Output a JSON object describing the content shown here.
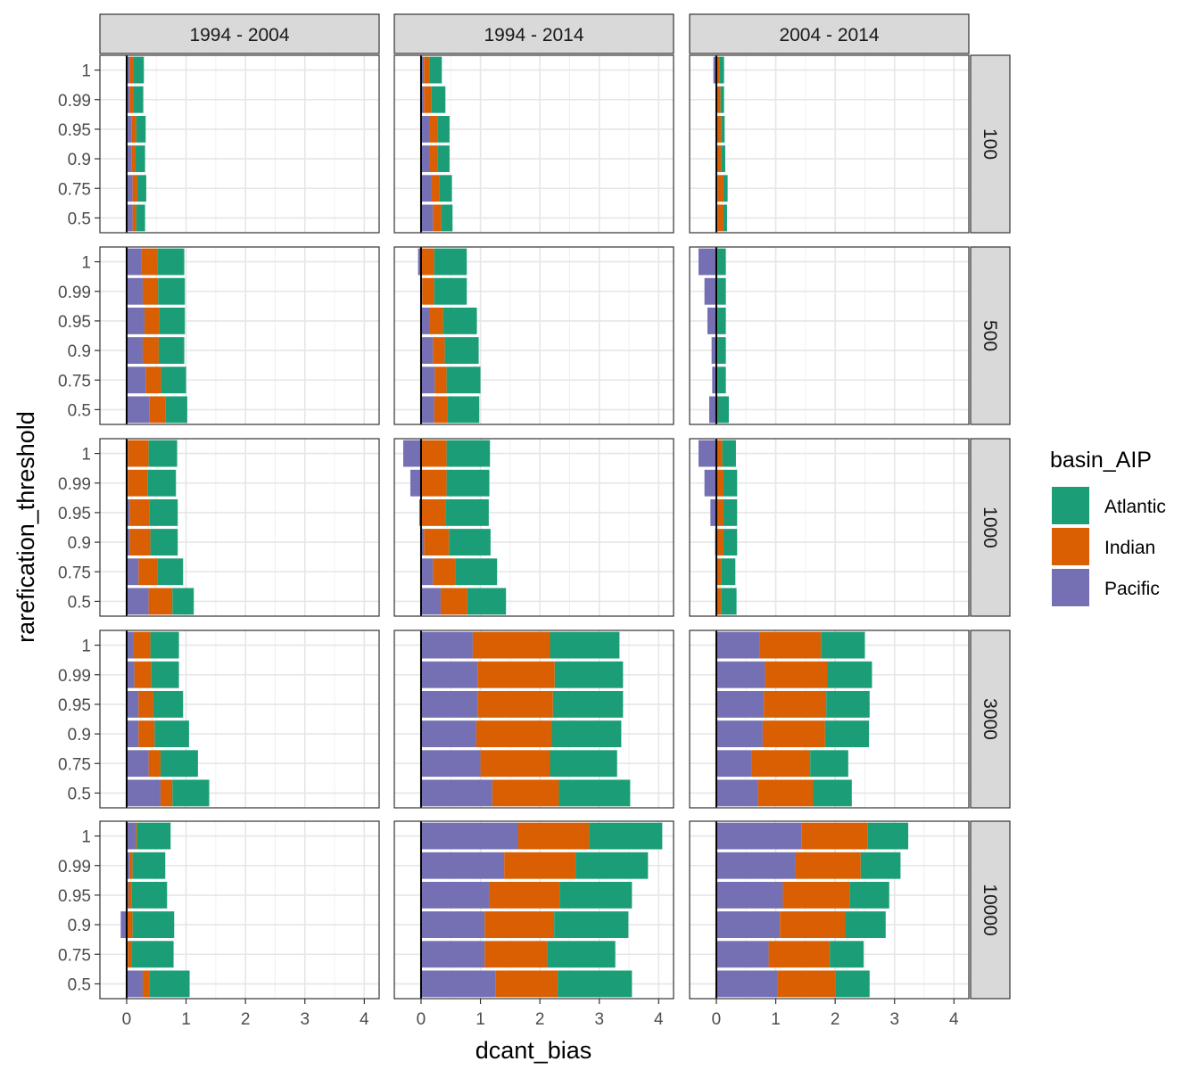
{
  "chart_data": {
    "type": "bar",
    "orientation": "horizontal",
    "stacked": true,
    "xlabel": "dcant_bias",
    "ylabel": "rarefication_threshold",
    "xlim": [
      -0.45,
      4.25
    ],
    "x_ticks": [
      0,
      1,
      2,
      3,
      4
    ],
    "grid": true,
    "vline_at": 0,
    "categories": [
      "1",
      "0.99",
      "0.95",
      "0.9",
      "0.75",
      "0.5"
    ],
    "col_facets": [
      "1994 - 2004",
      "1994 - 2014",
      "2004 - 2014"
    ],
    "row_facets": [
      "100",
      "500",
      "1000",
      "3000",
      "10000"
    ],
    "legend": {
      "title": "basin_AIP",
      "position": "right",
      "entries": [
        {
          "name": "Atlantic",
          "color": "#1b9e77"
        },
        {
          "name": "Indian",
          "color": "#d95f02"
        },
        {
          "name": "Pacific",
          "color": "#7570b3"
        }
      ]
    },
    "series_order": [
      "Pacific",
      "Indian",
      "Atlantic"
    ],
    "colors": {
      "Atlantic": "#1b9e77",
      "Indian": "#d95f02",
      "Pacific": "#7570b3"
    },
    "panels": [
      {
        "row": "100",
        "col": "1994 - 2004",
        "Pacific": [
          0.05,
          0.05,
          0.08,
          0.08,
          0.1,
          0.1
        ],
        "Indian": [
          0.07,
          0.07,
          0.08,
          0.07,
          0.08,
          0.06
        ],
        "Atlantic": [
          0.17,
          0.16,
          0.16,
          0.16,
          0.15,
          0.15
        ]
      },
      {
        "row": "100",
        "col": "1994 - 2014",
        "Pacific": [
          0.05,
          0.05,
          0.15,
          0.15,
          0.18,
          0.2
        ],
        "Indian": [
          0.1,
          0.12,
          0.13,
          0.13,
          0.13,
          0.14
        ],
        "Atlantic": [
          0.2,
          0.24,
          0.2,
          0.2,
          0.21,
          0.19
        ]
      },
      {
        "row": "100",
        "col": "2004 - 2014",
        "Pacific": [
          -0.05,
          0,
          0,
          0,
          0.02,
          0.02
        ],
        "Indian": [
          0.06,
          0.07,
          0.08,
          0.08,
          0.1,
          0.1
        ],
        "Atlantic": [
          0.07,
          0.06,
          0.06,
          0.07,
          0.07,
          0.06
        ]
      },
      {
        "row": "500",
        "col": "1994 - 2004",
        "Pacific": [
          0.25,
          0.27,
          0.3,
          0.27,
          0.32,
          0.38
        ],
        "Indian": [
          0.27,
          0.26,
          0.25,
          0.27,
          0.26,
          0.27
        ],
        "Atlantic": [
          0.45,
          0.45,
          0.43,
          0.43,
          0.42,
          0.37
        ]
      },
      {
        "row": "500",
        "col": "1994 - 2014",
        "Pacific": [
          -0.05,
          0.02,
          0.15,
          0.2,
          0.23,
          0.22
        ],
        "Indian": [
          0.22,
          0.2,
          0.22,
          0.2,
          0.2,
          0.23
        ],
        "Atlantic": [
          0.55,
          0.55,
          0.57,
          0.57,
          0.57,
          0.53
        ]
      },
      {
        "row": "500",
        "col": "2004 - 2014",
        "Pacific": [
          -0.3,
          -0.2,
          -0.15,
          -0.08,
          -0.07,
          -0.12
        ],
        "Indian": [
          0.02,
          0.02,
          0.02,
          0.02,
          0.02,
          0.03
        ],
        "Atlantic": [
          0.14,
          0.14,
          0.14,
          0.14,
          0.14,
          0.18
        ]
      },
      {
        "row": "1000",
        "col": "1994 - 2004",
        "Pacific": [
          0.02,
          0.02,
          0.05,
          0.05,
          0.2,
          0.37
        ],
        "Indian": [
          0.35,
          0.33,
          0.33,
          0.35,
          0.32,
          0.4
        ],
        "Atlantic": [
          0.48,
          0.48,
          0.48,
          0.46,
          0.43,
          0.36
        ]
      },
      {
        "row": "1000",
        "col": "1994 - 2014",
        "Pacific": [
          -0.3,
          -0.18,
          -0.03,
          0.05,
          0.2,
          0.33
        ],
        "Indian": [
          0.43,
          0.43,
          0.42,
          0.42,
          0.38,
          0.45
        ],
        "Atlantic": [
          0.73,
          0.72,
          0.72,
          0.7,
          0.7,
          0.65
        ]
      },
      {
        "row": "1000",
        "col": "2004 - 2014",
        "Pacific": [
          -0.3,
          -0.2,
          -0.1,
          -0.02,
          0,
          0
        ],
        "Indian": [
          0.1,
          0.12,
          0.12,
          0.12,
          0.08,
          0.08
        ],
        "Atlantic": [
          0.23,
          0.23,
          0.23,
          0.23,
          0.24,
          0.26
        ]
      },
      {
        "row": "3000",
        "col": "1994 - 2004",
        "Pacific": [
          0.12,
          0.13,
          0.2,
          0.2,
          0.37,
          0.57
        ],
        "Indian": [
          0.28,
          0.28,
          0.25,
          0.27,
          0.2,
          0.2
        ],
        "Atlantic": [
          0.48,
          0.47,
          0.5,
          0.58,
          0.63,
          0.62
        ]
      },
      {
        "row": "3000",
        "col": "1994 - 2014",
        "Pacific": [
          0.87,
          0.95,
          0.95,
          0.93,
          1.0,
          1.2
        ],
        "Indian": [
          1.3,
          1.3,
          1.27,
          1.27,
          1.17,
          1.12
        ],
        "Atlantic": [
          1.17,
          1.15,
          1.18,
          1.17,
          1.13,
          1.2
        ]
      },
      {
        "row": "3000",
        "col": "2004 - 2014",
        "Pacific": [
          0.73,
          0.82,
          0.8,
          0.78,
          0.6,
          0.7
        ],
        "Indian": [
          1.03,
          1.05,
          1.05,
          1.05,
          0.98,
          0.93
        ],
        "Atlantic": [
          0.74,
          0.75,
          0.73,
          0.74,
          0.64,
          0.65
        ]
      },
      {
        "row": "10000",
        "col": "1994 - 2004",
        "Pacific": [
          0.15,
          0.05,
          0.03,
          -0.1,
          0.02,
          0.27
        ],
        "Indian": [
          0.02,
          0.05,
          0.05,
          0.1,
          0.07,
          0.12
        ],
        "Atlantic": [
          0.57,
          0.55,
          0.6,
          0.7,
          0.7,
          0.67
        ]
      },
      {
        "row": "10000",
        "col": "1994 - 2014",
        "Pacific": [
          1.63,
          1.4,
          1.15,
          1.07,
          1.07,
          1.25
        ],
        "Indian": [
          1.2,
          1.2,
          1.18,
          1.17,
          1.05,
          1.05
        ],
        "Atlantic": [
          1.23,
          1.22,
          1.22,
          1.25,
          1.15,
          1.25
        ]
      },
      {
        "row": "10000",
        "col": "2004 - 2014",
        "Pacific": [
          1.43,
          1.33,
          1.12,
          1.07,
          0.88,
          1.03
        ],
        "Indian": [
          1.12,
          1.1,
          1.12,
          1.1,
          1.03,
          0.97
        ],
        "Atlantic": [
          0.68,
          0.67,
          0.67,
          0.68,
          0.57,
          0.58
        ]
      }
    ]
  }
}
